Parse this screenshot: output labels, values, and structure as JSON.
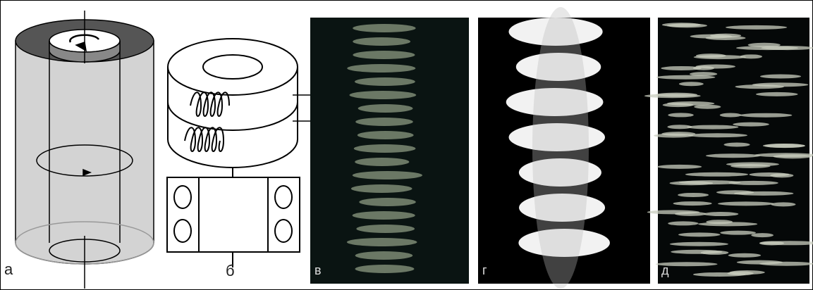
{
  "panels": [
    {
      "label": "а"
    },
    {
      "label": "б"
    },
    {
      "label": "в"
    },
    {
      "label": "г"
    },
    {
      "label": "д"
    }
  ]
}
